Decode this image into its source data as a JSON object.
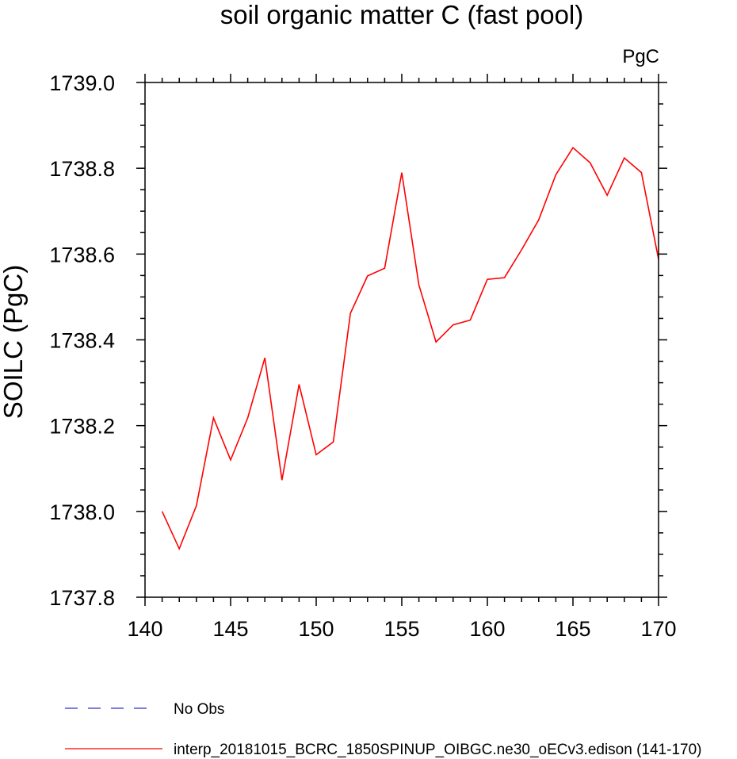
{
  "chart_data": {
    "type": "line",
    "title": "soil organic matter C (fast pool)",
    "units_label": "PgC",
    "ylabel": "SOILC  (PgC)",
    "xlabel": "",
    "xlim": [
      140,
      170
    ],
    "ylim": [
      1737.8,
      1739.0
    ],
    "x_major_ticks": [
      "140",
      "145",
      "150",
      "155",
      "160",
      "165",
      "170"
    ],
    "y_major_ticks": [
      "1737.8",
      "1738.0",
      "1738.2",
      "1738.4",
      "1738.6",
      "1738.8",
      "1739.0"
    ],
    "grid": false,
    "legend_position": "bottom",
    "series": [
      {
        "name": "interp_20181015_BCRC_1850SPINUP_OIBGC.ne30_oECv3.edison (141-170)",
        "color": "#ff0000",
        "dash": "solid",
        "x": [
          141,
          142,
          143,
          144,
          145,
          146,
          147,
          148,
          149,
          150,
          151,
          152,
          153,
          154,
          155,
          156,
          157,
          158,
          159,
          160,
          161,
          162,
          163,
          164,
          165,
          166,
          167,
          168,
          169,
          170
        ],
        "y": [
          1738.0,
          1737.913,
          1738.013,
          1738.218,
          1738.12,
          1738.218,
          1738.358,
          1738.073,
          1738.296,
          1738.132,
          1738.162,
          1738.462,
          1738.549,
          1738.567,
          1738.79,
          1738.528,
          1738.395,
          1738.435,
          1738.446,
          1738.541,
          1738.545,
          1738.61,
          1738.68,
          1738.785,
          1738.848,
          1738.813,
          1738.737,
          1738.824,
          1738.79,
          1738.588
        ]
      },
      {
        "name": "No Obs",
        "color": "#3333cc",
        "dash": "dashed",
        "x": [],
        "y": []
      }
    ]
  }
}
